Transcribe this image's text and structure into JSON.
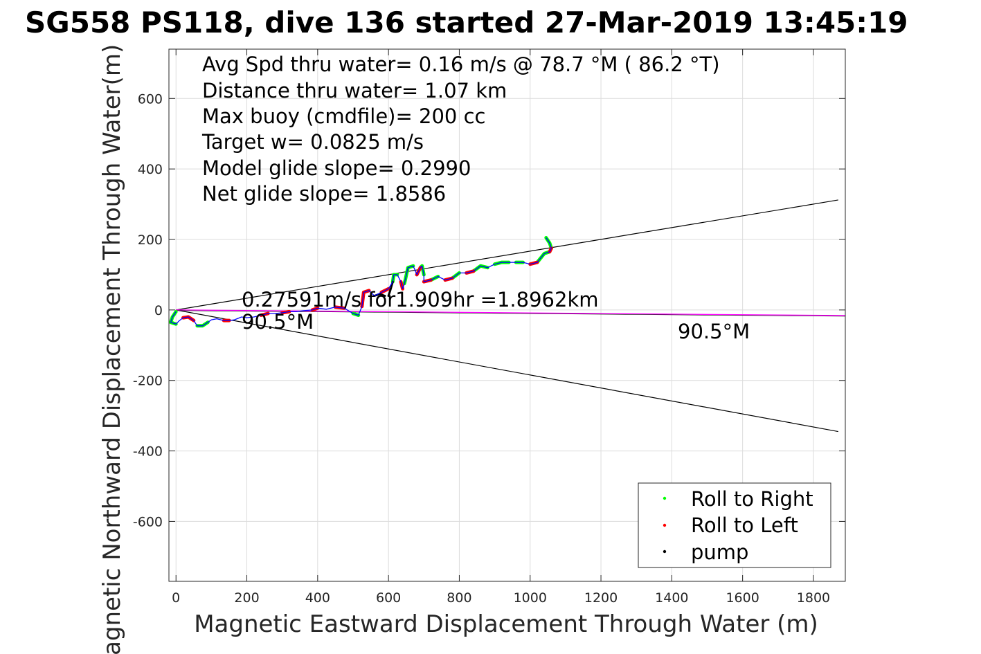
{
  "chart_data": {
    "type": "scatter",
    "title": "SG558 PS118, dive 136 started 27-Mar-2019 13:45:19",
    "xlabel": "Magnetic Eastward Displacement Through Water (m)",
    "ylabel": "Magnetic Northward Displacement Through Water(m)",
    "xlim": [
      -20,
      1890
    ],
    "ylim": [
      -770,
      740
    ],
    "xticks": [
      0,
      200,
      400,
      600,
      800,
      1000,
      1200,
      1400,
      1600,
      1800
    ],
    "yticks": [
      -600,
      -400,
      -200,
      0,
      200,
      400,
      600
    ],
    "grid": true,
    "legend_position": "bottom-right",
    "stats_lines": [
      "Avg Spd thru water=  0.16 m/s @  78.7 °M ( 86.2 °T)",
      "Distance thru water=  1.07 km",
      "Max buoy (cmdfile)= 200 cc",
      "Target w= 0.0825 m/s",
      "Model glide slope= 0.2990",
      "Net glide slope= 1.8586"
    ],
    "current_label": "0.27591m/s for1.909hr =1.8962km",
    "current_heading_label": "90.5°M",
    "end_heading_label": "90.5°M",
    "legend": [
      {
        "name": "Roll to Right",
        "color": "#00ff00"
      },
      {
        "name": "Roll to Left",
        "color": "#ff0000"
      },
      {
        "name": "pump",
        "color": "#000000"
      }
    ],
    "cone_lines": [
      {
        "from": [
          0,
          0
        ],
        "to": [
          1870,
          312
        ],
        "color": "#000000"
      },
      {
        "from": [
          0,
          0
        ],
        "to": [
          1870,
          -345
        ],
        "color": "#000000"
      }
    ],
    "current_line": {
      "from": [
        0,
        0
      ],
      "to": [
        1890,
        -16
      ],
      "color": "#ff00ff"
    },
    "track_color": "#0000ff",
    "track": [
      [
        0,
        -5
      ],
      [
        -10,
        -20
      ],
      [
        -15,
        -35
      ],
      [
        0,
        -40
      ],
      [
        10,
        -30
      ],
      [
        20,
        -22
      ],
      [
        35,
        -20
      ],
      [
        50,
        -30
      ],
      [
        60,
        -45
      ],
      [
        75,
        -45
      ],
      [
        90,
        -35
      ],
      [
        100,
        -28
      ],
      [
        115,
        -25
      ],
      [
        135,
        -30
      ],
      [
        150,
        -30
      ],
      [
        165,
        -28
      ],
      [
        185,
        -20
      ],
      [
        200,
        -22
      ],
      [
        220,
        -20
      ],
      [
        240,
        -15
      ],
      [
        260,
        -10
      ],
      [
        280,
        -10
      ],
      [
        300,
        -8
      ],
      [
        320,
        -5
      ],
      [
        340,
        -5
      ],
      [
        360,
        -2
      ],
      [
        385,
        0
      ],
      [
        400,
        5
      ],
      [
        425,
        2
      ],
      [
        450,
        8
      ],
      [
        475,
        5
      ],
      [
        500,
        -10
      ],
      [
        515,
        -15
      ],
      [
        525,
        10
      ],
      [
        530,
        50
      ],
      [
        545,
        55
      ],
      [
        560,
        40
      ],
      [
        580,
        50
      ],
      [
        600,
        60
      ],
      [
        612,
        80
      ],
      [
        615,
        100
      ],
      [
        625,
        100
      ],
      [
        635,
        80
      ],
      [
        640,
        60
      ],
      [
        645,
        75
      ],
      [
        655,
        120
      ],
      [
        670,
        125
      ],
      [
        680,
        100
      ],
      [
        690,
        120
      ],
      [
        695,
        125
      ],
      [
        700,
        100
      ],
      [
        700,
        80
      ],
      [
        720,
        85
      ],
      [
        740,
        95
      ],
      [
        760,
        85
      ],
      [
        780,
        90
      ],
      [
        800,
        105
      ],
      [
        820,
        105
      ],
      [
        840,
        110
      ],
      [
        860,
        125
      ],
      [
        880,
        120
      ],
      [
        900,
        130
      ],
      [
        920,
        135
      ],
      [
        940,
        135
      ],
      [
        960,
        135
      ],
      [
        980,
        135
      ],
      [
        1000,
        130
      ],
      [
        1020,
        135
      ],
      [
        1040,
        160
      ],
      [
        1055,
        165
      ],
      [
        1060,
        175
      ],
      [
        1055,
        190
      ],
      [
        1045,
        205
      ]
    ],
    "roll_right_segments": [
      [
        [
          0,
          -5
        ],
        [
          -10,
          -20
        ],
        [
          -15,
          -35
        ],
        [
          0,
          -40
        ]
      ],
      [
        [
          60,
          -45
        ],
        [
          75,
          -45
        ],
        [
          90,
          -35
        ]
      ],
      [
        [
          500,
          -10
        ],
        [
          515,
          -15
        ]
      ],
      [
        [
          612,
          80
        ],
        [
          615,
          100
        ],
        [
          625,
          100
        ]
      ],
      [
        [
          645,
          75
        ],
        [
          655,
          120
        ],
        [
          670,
          125
        ]
      ],
      [
        [
          690,
          120
        ],
        [
          695,
          125
        ],
        [
          700,
          100
        ]
      ],
      [
        [
          720,
          85
        ],
        [
          740,
          95
        ]
      ],
      [
        [
          780,
          90
        ],
        [
          800,
          105
        ]
      ],
      [
        [
          840,
          110
        ],
        [
          860,
          125
        ],
        [
          880,
          120
        ]
      ],
      [
        [
          900,
          130
        ],
        [
          920,
          135
        ],
        [
          940,
          135
        ]
      ],
      [
        [
          960,
          135
        ],
        [
          980,
          135
        ]
      ],
      [
        [
          1020,
          135
        ],
        [
          1040,
          160
        ],
        [
          1055,
          165
        ]
      ],
      [
        [
          1060,
          175
        ],
        [
          1055,
          190
        ],
        [
          1045,
          205
        ]
      ]
    ],
    "roll_left_segments": [
      [
        [
          20,
          -22
        ],
        [
          35,
          -20
        ],
        [
          50,
          -30
        ]
      ],
      [
        [
          135,
          -30
        ],
        [
          150,
          -30
        ]
      ],
      [
        [
          240,
          -15
        ],
        [
          260,
          -10
        ]
      ],
      [
        [
          300,
          -8
        ],
        [
          320,
          -5
        ]
      ],
      [
        [
          385,
          0
        ],
        [
          400,
          5
        ]
      ],
      [
        [
          450,
          8
        ],
        [
          475,
          5
        ]
      ],
      [
        [
          525,
          10
        ],
        [
          530,
          50
        ],
        [
          545,
          55
        ]
      ],
      [
        [
          580,
          50
        ],
        [
          600,
          60
        ]
      ],
      [
        [
          635,
          80
        ],
        [
          640,
          60
        ]
      ],
      [
        [
          680,
          100
        ],
        [
          690,
          120
        ]
      ],
      [
        [
          700,
          80
        ],
        [
          720,
          85
        ]
      ],
      [
        [
          760,
          85
        ],
        [
          780,
          90
        ]
      ],
      [
        [
          820,
          105
        ],
        [
          840,
          110
        ]
      ],
      [
        [
          1000,
          130
        ],
        [
          1020,
          135
        ]
      ],
      [
        [
          1055,
          165
        ],
        [
          1060,
          175
        ]
      ]
    ],
    "pump_segments": [
      [
        [
          600,
          40
        ],
        [
          605,
          55
        ],
        [
          612,
          80
        ]
      ],
      [
        [
          560,
          40
        ],
        [
          575,
          45
        ],
        [
          590,
          40
        ]
      ]
    ]
  }
}
